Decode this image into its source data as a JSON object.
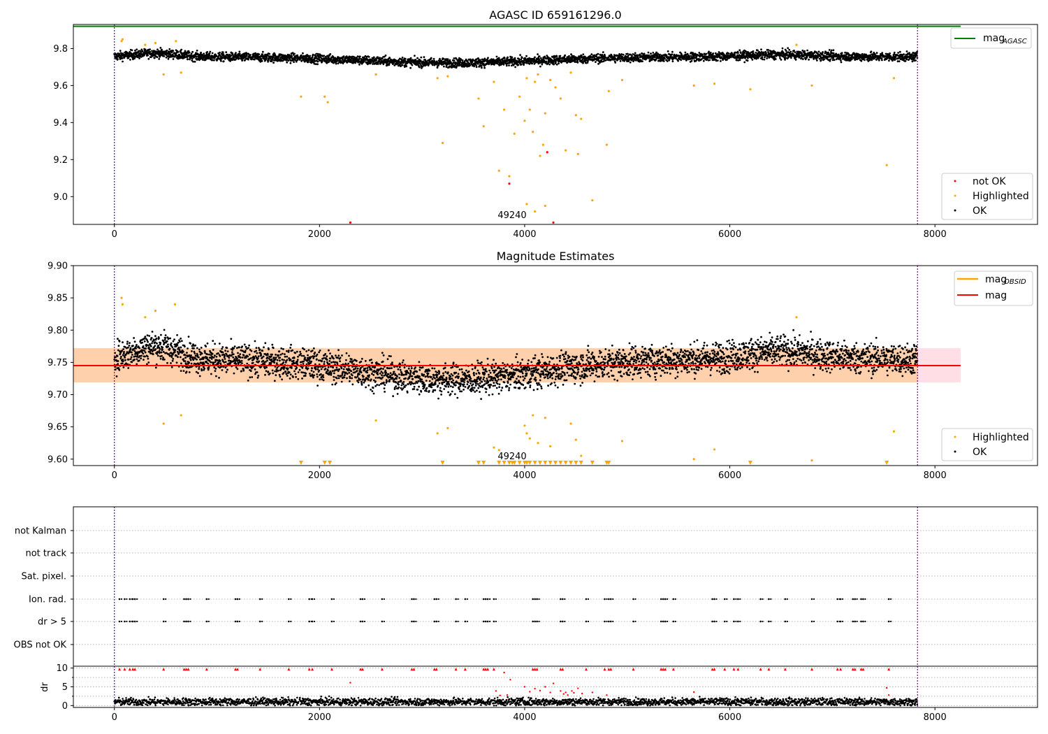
{
  "chart_data": [
    {
      "type": "scatter",
      "title": "AGASC ID 659161296.0",
      "xlim": [
        -400,
        9000
      ],
      "ylim": [
        8.85,
        9.93
      ],
      "xticks": [
        "0",
        "2000",
        "4000",
        "6000",
        "8000"
      ],
      "yticks": [
        "9.0",
        "9.2",
        "9.4",
        "9.6",
        "9.8"
      ],
      "xtick_values": [
        0,
        2000,
        4000,
        6000,
        8000
      ],
      "ytick_values": [
        9.0,
        9.2,
        9.4,
        9.6,
        9.8
      ],
      "mag_agasc": 9.92,
      "vlines": [
        0,
        7830
      ],
      "annotation": {
        "text": "49240",
        "x": 3800,
        "y": 8.87
      },
      "legend_lines": [
        {
          "label": "mag",
          "sub": "AGASC",
          "color": "#008000"
        }
      ],
      "legend_points": [
        {
          "label": "not OK",
          "color": "#ff0000"
        },
        {
          "label": "Highlighted",
          "color": "#ffa500"
        },
        {
          "label": "OK",
          "color": "#000000"
        }
      ],
      "series": [
        {
          "name": "Highlighted",
          "color": "#ffa500",
          "points": [
            [
              70,
              9.84
            ],
            [
              80,
              9.85
            ],
            [
              300,
              9.82
            ],
            [
              400,
              9.83
            ],
            [
              480,
              9.66
            ],
            [
              600,
              9.84
            ],
            [
              650,
              9.67
            ],
            [
              1820,
              9.54
            ],
            [
              2050,
              9.54
            ],
            [
              2080,
              9.51
            ],
            [
              2550,
              9.66
            ],
            [
              3150,
              9.64
            ],
            [
              3200,
              9.29
            ],
            [
              3250,
              9.65
            ],
            [
              3550,
              9.53
            ],
            [
              3600,
              9.38
            ],
            [
              3700,
              9.62
            ],
            [
              3750,
              9.14
            ],
            [
              3800,
              9.47
            ],
            [
              3850,
              9.11
            ],
            [
              3900,
              9.34
            ],
            [
              3950,
              9.54
            ],
            [
              4000,
              9.41
            ],
            [
              4020,
              9.64
            ],
            [
              4050,
              9.47
            ],
            [
              4080,
              9.35
            ],
            [
              4100,
              9.62
            ],
            [
              4130,
              9.66
            ],
            [
              4150,
              9.22
            ],
            [
              4180,
              9.28
            ],
            [
              4200,
              9.45
            ],
            [
              4250,
              9.63
            ],
            [
              4300,
              9.59
            ],
            [
              4350,
              9.53
            ],
            [
              4400,
              9.25
            ],
            [
              4450,
              9.67
            ],
            [
              4500,
              9.44
            ],
            [
              4520,
              9.23
            ],
            [
              4550,
              9.42
            ],
            [
              4660,
              8.98
            ],
            [
              4800,
              9.28
            ],
            [
              4820,
              9.57
            ],
            [
              4950,
              9.63
            ],
            [
              5650,
              9.6
            ],
            [
              5850,
              9.61
            ],
            [
              6200,
              9.58
            ],
            [
              6650,
              9.82
            ],
            [
              6800,
              9.6
            ],
            [
              7530,
              9.17
            ],
            [
              7600,
              9.64
            ],
            [
              4020,
              8.96
            ],
            [
              4100,
              8.92
            ],
            [
              4200,
              8.95
            ]
          ]
        },
        {
          "name": "not OK",
          "color": "#ff0000",
          "points": [
            [
              2300,
              8.86
            ],
            [
              3850,
              9.07
            ],
            [
              4220,
              9.24
            ],
            [
              4280,
              8.86
            ]
          ]
        }
      ]
    },
    {
      "type": "scatter",
      "title": "Magnitude Estimates",
      "xlim": [
        -400,
        9000
      ],
      "ylim": [
        9.59,
        9.9
      ],
      "xticks": [
        "0",
        "2000",
        "4000",
        "6000",
        "8000"
      ],
      "yticks": [
        "9.60",
        "9.65",
        "9.70",
        "9.75",
        "9.80",
        "9.85",
        "9.90"
      ],
      "xtick_values": [
        0,
        2000,
        4000,
        6000,
        8000
      ],
      "ytick_values": [
        9.6,
        9.65,
        9.7,
        9.75,
        9.8,
        9.85,
        9.9
      ],
      "mag": 9.745,
      "mag_band": [
        9.719,
        9.772
      ],
      "vlines": [
        0,
        7830
      ],
      "annotation": {
        "text": "49240",
        "x": 3800,
        "y": 9.601
      },
      "legend_lines": [
        {
          "label": "mag",
          "sub": "OBSID",
          "color": "#ffa500"
        },
        {
          "label": "mag",
          "sub": "",
          "color": "#ff0000"
        }
      ],
      "legend_points": [
        {
          "label": "Highlighted",
          "color": "#ffa500"
        },
        {
          "label": "OK",
          "color": "#000000"
        }
      ],
      "series": [
        {
          "name": "Highlighted",
          "color": "#ffa500",
          "points": [
            [
              70,
              9.85
            ],
            [
              80,
              9.84
            ],
            [
              300,
              9.82
            ],
            [
              400,
              9.83
            ],
            [
              480,
              9.655
            ],
            [
              590,
              9.84
            ],
            [
              650,
              9.668
            ],
            [
              2550,
              9.66
            ],
            [
              3150,
              9.64
            ],
            [
              3250,
              9.648
            ],
            [
              3700,
              9.618
            ],
            [
              3750,
              9.614
            ],
            [
              4000,
              9.652
            ],
            [
              4020,
              9.64
            ],
            [
              4050,
              9.632
            ],
            [
              4080,
              9.668
            ],
            [
              4130,
              9.625
            ],
            [
              4200,
              9.664
            ],
            [
              4250,
              9.62
            ],
            [
              4450,
              9.655
            ],
            [
              4500,
              9.63
            ],
            [
              4550,
              9.605
            ],
            [
              4950,
              9.628
            ],
            [
              5650,
              9.6
            ],
            [
              5850,
              9.615
            ],
            [
              6650,
              9.82
            ],
            [
              6800,
              9.598
            ],
            [
              7600,
              9.643
            ]
          ]
        },
        {
          "name": "Highlighted (clipped)",
          "color": "#ffa500",
          "marker": "triangle",
          "xs": [
            1820,
            2050,
            2100,
            3200,
            3550,
            3600,
            3750,
            3800,
            3850,
            3880,
            3900,
            3950,
            4000,
            4020,
            4050,
            4100,
            4150,
            4200,
            4250,
            4300,
            4350,
            4400,
            4450,
            4500,
            4550,
            4660,
            4800,
            4820,
            6200,
            7530
          ]
        }
      ]
    },
    {
      "type": "scatter",
      "title": "",
      "xlim": [
        -400,
        9000
      ],
      "xticks": [
        "0",
        "2000",
        "4000",
        "6000",
        "8000"
      ],
      "xtick_values": [
        0,
        2000,
        4000,
        6000,
        8000
      ],
      "flag_rows": [
        "not Kalman",
        "not track",
        "Sat. pixel.",
        "Ion. rad.",
        "dr > 5",
        "OBS not OK"
      ],
      "flag_times": [
        50,
        100,
        150,
        180,
        200,
        480,
        680,
        700,
        720,
        900,
        1180,
        1200,
        1420,
        1700,
        1900,
        1930,
        2120,
        2400,
        2420,
        2610,
        2900,
        2920,
        3120,
        3140,
        3330,
        3420,
        3600,
        3620,
        3640,
        3700,
        4080,
        4100,
        4120,
        4350,
        4370,
        4600,
        4780,
        4820,
        4840,
        5060,
        5330,
        5350,
        5370,
        5450,
        5830,
        5850,
        5950,
        6040,
        6080,
        6300,
        6380,
        6540,
        6800,
        7050,
        7080,
        7200,
        7220,
        7280,
        7300,
        7550
      ],
      "dr": {
        "ylabel": "dr",
        "yticks": [
          "0",
          "5",
          "10"
        ],
        "ytick_values": [
          0,
          5,
          10
        ],
        "ylim": [
          -0.5,
          10.5
        ],
        "outliers": [
          [
            2300,
            6.1
          ],
          [
            3720,
            3.9
          ],
          [
            3760,
            2.7
          ],
          [
            3800,
            8.8
          ],
          [
            3830,
            2.8
          ],
          [
            3860,
            6.9
          ],
          [
            4000,
            5.0
          ],
          [
            4050,
            3.7
          ],
          [
            4100,
            4.5
          ],
          [
            4150,
            4.0
          ],
          [
            4200,
            5.0
          ],
          [
            4250,
            3.5
          ],
          [
            4280,
            5.9
          ],
          [
            4350,
            3.9
          ],
          [
            4380,
            3.1
          ],
          [
            4400,
            3.5
          ],
          [
            4420,
            2.8
          ],
          [
            4460,
            3.9
          ],
          [
            4480,
            3.4
          ],
          [
            4520,
            4.6
          ],
          [
            4560,
            3.2
          ],
          [
            4660,
            3.5
          ],
          [
            4800,
            2.8
          ],
          [
            5650,
            3.6
          ],
          [
            7530,
            4.7
          ],
          [
            7550,
            2.8
          ]
        ]
      }
    }
  ]
}
